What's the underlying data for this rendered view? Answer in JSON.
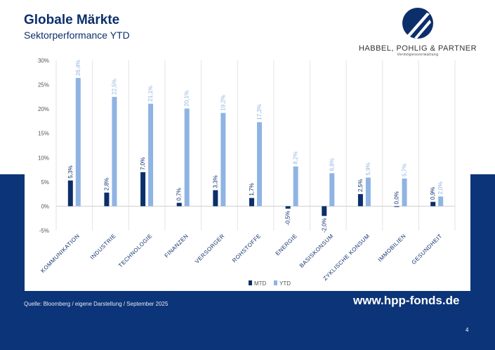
{
  "header": {
    "title": "Globale Märkte",
    "subtitle": "Sektorperformance YTD"
  },
  "logo": {
    "name": "HABBEL, POHLIG & PARTNER",
    "sub": "Vermögensverwaltung"
  },
  "footer": {
    "source": "Quelle: Bloomberg / eigene Darstellung / September 2025",
    "url": "www.hpp-fonds.de",
    "page": "4"
  },
  "colors": {
    "mtd": "#0c2f6b",
    "ytd": "#8fb4e3",
    "band": "#0c3478"
  },
  "chart_data": {
    "type": "bar",
    "categories": [
      "KOMMUNIKATION",
      "INDUSTRIE",
      "TECHNOLOGIE",
      "FINANZEN",
      "VERSORGER",
      "ROHSTOFFE",
      "ENERGIE",
      "BASISKONSUM",
      "ZYKLISCHE KONSUM",
      "IMMOBILIEN",
      "GESUNDHEIT"
    ],
    "series": [
      {
        "name": "MTD",
        "values": [
          5.3,
          2.8,
          7.0,
          0.7,
          3.3,
          1.7,
          -0.5,
          -2.0,
          2.5,
          0.0,
          0.9
        ],
        "labels": [
          "5,3%",
          "2,8%",
          "7,0%",
          "0,7%",
          "3,3%",
          "1,7%",
          "-0,5%",
          "-2,0%",
          "2,5%",
          "0,0%",
          "0,9%"
        ]
      },
      {
        "name": "YTD",
        "values": [
          26.4,
          22.5,
          21.1,
          20.1,
          19.2,
          17.3,
          8.2,
          6.8,
          5.9,
          5.7,
          2.0
        ],
        "labels": [
          "26,4%",
          "22,5%",
          "21,1%",
          "20,1%",
          "19,2%",
          "17,3%",
          "8,2%",
          "6,8%",
          "5,9%",
          "5,7%",
          "2,0%"
        ]
      }
    ],
    "yticks": [
      "30%",
      "25%",
      "20%",
      "15%",
      "10%",
      "5%",
      "0%",
      "-5%"
    ],
    "ylim": [
      -5,
      30
    ],
    "legend": "bottom-center"
  }
}
